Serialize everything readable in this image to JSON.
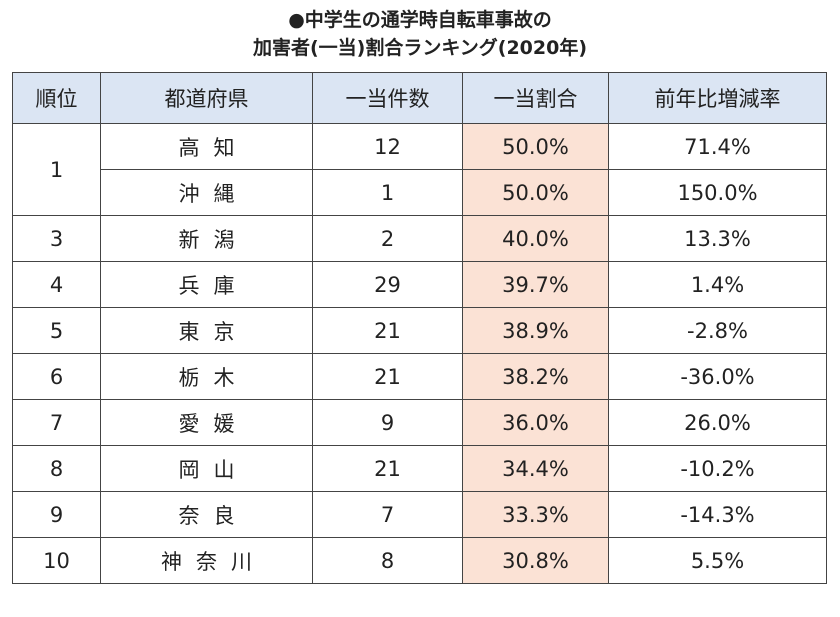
{
  "title": {
    "line1": "●中学生の通学時自転車事故の",
    "line2": "加害者(一当)割合ランキング(2020年)"
  },
  "table": {
    "headers": [
      "順位",
      "都道府県",
      "一当件数",
      "一当割合",
      "前年比増減率"
    ],
    "rows": [
      {
        "rank": "1",
        "pref": "高知",
        "count": "12",
        "ratio": "50.0%",
        "change": "71.4%"
      },
      {
        "rank": "",
        "pref": "沖縄",
        "count": "1",
        "ratio": "50.0%",
        "change": "150.0%"
      },
      {
        "rank": "3",
        "pref": "新潟",
        "count": "2",
        "ratio": "40.0%",
        "change": "13.3%"
      },
      {
        "rank": "4",
        "pref": "兵庫",
        "count": "29",
        "ratio": "39.7%",
        "change": "1.4%"
      },
      {
        "rank": "5",
        "pref": "東京",
        "count": "21",
        "ratio": "38.9%",
        "change": "-2.8%"
      },
      {
        "rank": "6",
        "pref": "栃木",
        "count": "21",
        "ratio": "38.2%",
        "change": "-36.0%"
      },
      {
        "rank": "7",
        "pref": "愛媛",
        "count": "9",
        "ratio": "36.0%",
        "change": "26.0%"
      },
      {
        "rank": "8",
        "pref": "岡山",
        "count": "21",
        "ratio": "34.4%",
        "change": "-10.2%"
      },
      {
        "rank": "9",
        "pref": "奈良",
        "count": "7",
        "ratio": "33.3%",
        "change": "-14.3%"
      },
      {
        "rank": "10",
        "pref": "神奈川",
        "count": "8",
        "ratio": "30.8%",
        "change": "5.5%"
      }
    ]
  },
  "colors": {
    "header_bg": "#dbe5f3",
    "highlight_bg": "#fbe2d5",
    "border": "#444444"
  }
}
